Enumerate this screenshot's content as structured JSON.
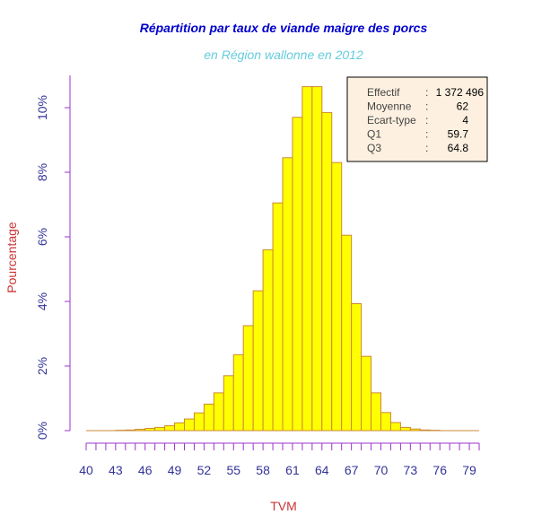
{
  "chart_data": {
    "type": "bar",
    "title": "Répartition par taux de viande maigre des porcs",
    "subtitle": "en Région wallonne en 2012",
    "xlabel": "TVM",
    "ylabel": "Pourcentage",
    "x_ticks": [
      "40",
      "43",
      "46",
      "49",
      "52",
      "55",
      "58",
      "61",
      "64",
      "67",
      "70",
      "73",
      "76",
      "79"
    ],
    "y_ticks": [
      "0%",
      "2%",
      "4%",
      "6%",
      "8%",
      "10%"
    ],
    "ylim": [
      0,
      11
    ],
    "xlim": [
      40,
      80
    ],
    "bin_width": 1,
    "bins_start": [
      40,
      41,
      42,
      43,
      44,
      45,
      46,
      47,
      48,
      49,
      50,
      51,
      52,
      53,
      54,
      55,
      56,
      57,
      58,
      59,
      60,
      61,
      62,
      63,
      64,
      65,
      66,
      67,
      68,
      69,
      70,
      71,
      72,
      73,
      74,
      75,
      76,
      77,
      78,
      79
    ],
    "values": [
      0.0,
      0.0,
      0.0,
      0.01,
      0.02,
      0.04,
      0.07,
      0.1,
      0.15,
      0.24,
      0.36,
      0.55,
      0.82,
      1.17,
      1.7,
      2.35,
      3.25,
      4.33,
      5.6,
      7.05,
      8.45,
      9.7,
      10.65,
      10.65,
      9.85,
      8.3,
      6.05,
      3.93,
      2.3,
      1.17,
      0.56,
      0.25,
      0.1,
      0.05,
      0.02,
      0.01,
      0.0,
      0.0,
      0.0,
      0.0
    ],
    "colors": {
      "bar_fill": "#ffff00",
      "bar_stroke": "#cc8833",
      "x_axis": "#9933cc",
      "y_axis": "#9933cc",
      "tick_text": "#333399",
      "title": "#0000cc",
      "subtitle": "#66ccdd",
      "label": "#cc3333",
      "legend_bg": "#fdf0e0",
      "legend_text": "#444444"
    }
  },
  "stats": {
    "rows": [
      {
        "label": "Effectif",
        "sep": ":",
        "value": "1 372 496"
      },
      {
        "label": "Moyenne",
        "sep": ":",
        "value": "62"
      },
      {
        "label": "Ecart-type",
        "sep": ":",
        "value": "4"
      },
      {
        "label": "Q1",
        "sep": ":",
        "value": "59.7"
      },
      {
        "label": "Q3",
        "sep": ":",
        "value": "64.8"
      }
    ]
  }
}
